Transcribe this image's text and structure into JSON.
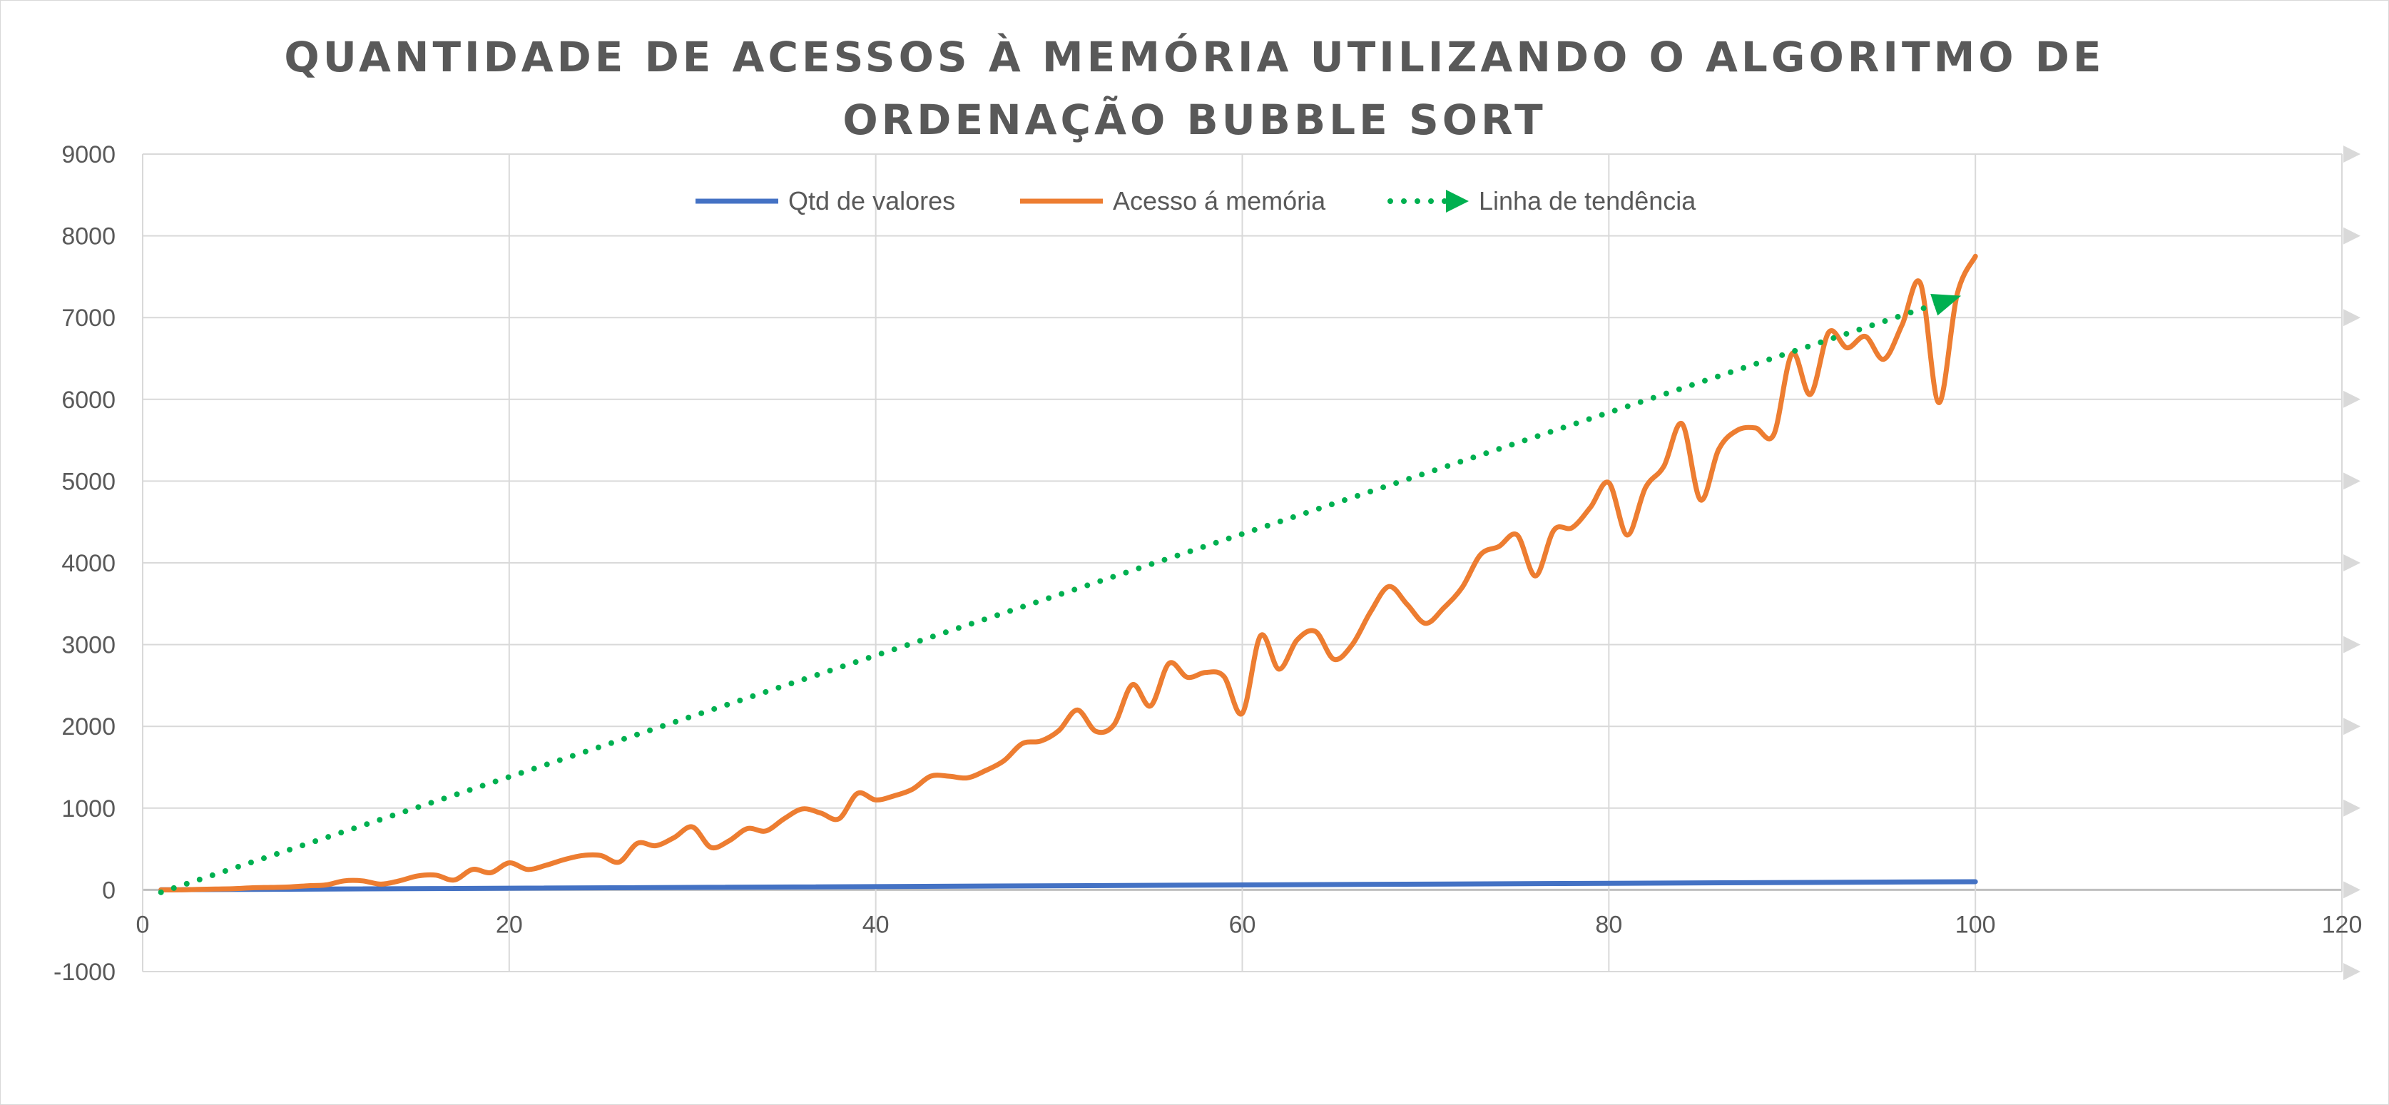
{
  "chart_data": {
    "type": "line",
    "title_lines": [
      "QUANTIDADE DE ACESSOS À MEMÓRIA UTILIZANDO O ALGORITMO DE",
      "ORDENAÇÃO BUBBLE SORT"
    ],
    "xlabel": "",
    "ylabel": "",
    "xlim": [
      0,
      120
    ],
    "ylim": [
      -1000,
      9000
    ],
    "x_ticks": [
      "0",
      "20",
      "40",
      "60",
      "80",
      "100",
      "120"
    ],
    "y_ticks": [
      "-1000",
      "0",
      "1000",
      "2000",
      "3000",
      "4000",
      "5000",
      "6000",
      "7000",
      "8000",
      "9000"
    ],
    "grid": true,
    "legend_position": "top",
    "series": [
      {
        "name": "Qtd de valores",
        "color": "#4472c4",
        "style": "solid",
        "x": [
          1,
          100
        ],
        "y": [
          1,
          100
        ]
      },
      {
        "name": "Acesso á memória",
        "color": "#ed7d31",
        "style": "smooth",
        "x": [
          1,
          2,
          3,
          4,
          5,
          6,
          7,
          8,
          9,
          10,
          11,
          12,
          13,
          14,
          15,
          16,
          17,
          18,
          19,
          20,
          21,
          22,
          23,
          24,
          25,
          26,
          27,
          28,
          29,
          30,
          31,
          32,
          33,
          34,
          35,
          36,
          37,
          38,
          39,
          40,
          41,
          42,
          43,
          44,
          45,
          46,
          47,
          48,
          49,
          50,
          51,
          52,
          53,
          54,
          55,
          56,
          57,
          58,
          59,
          60,
          61,
          62,
          63,
          64,
          65,
          66,
          67,
          68,
          69,
          70,
          71,
          72,
          73,
          74,
          75,
          76,
          77,
          78,
          79,
          80,
          81,
          82,
          83,
          84,
          85,
          86,
          87,
          88,
          89,
          90,
          91,
          92,
          93,
          94,
          95,
          96,
          97,
          98,
          99,
          100
        ],
        "y": [
          0,
          0,
          5,
          10,
          15,
          25,
          30,
          35,
          50,
          60,
          110,
          110,
          70,
          110,
          170,
          180,
          120,
          250,
          210,
          330,
          250,
          300,
          370,
          420,
          420,
          340,
          570,
          540,
          640,
          770,
          520,
          600,
          750,
          720,
          870,
          990,
          940,
          870,
          1180,
          1100,
          1150,
          1230,
          1390,
          1390,
          1370,
          1460,
          1580,
          1790,
          1820,
          1950,
          2200,
          1940,
          2020,
          2510,
          2250,
          2770,
          2600,
          2660,
          2610,
          2160,
          3110,
          2700,
          3060,
          3160,
          2820,
          3000,
          3400,
          3710,
          3490,
          3260,
          3450,
          3700,
          4100,
          4200,
          4340,
          3840,
          4400,
          4430,
          4680,
          4980,
          4340,
          4920,
          5180,
          5700,
          4770,
          5390,
          5620,
          5650,
          5570,
          6560,
          6060,
          6820,
          6630,
          6770,
          6490,
          6910,
          7420,
          5960,
          7280,
          7750
        ]
      },
      {
        "name": "Linha de tendência",
        "color": "#00b050",
        "style": "dotted",
        "x": [
          1,
          99
        ],
        "y": [
          -30,
          7250
        ]
      }
    ]
  }
}
